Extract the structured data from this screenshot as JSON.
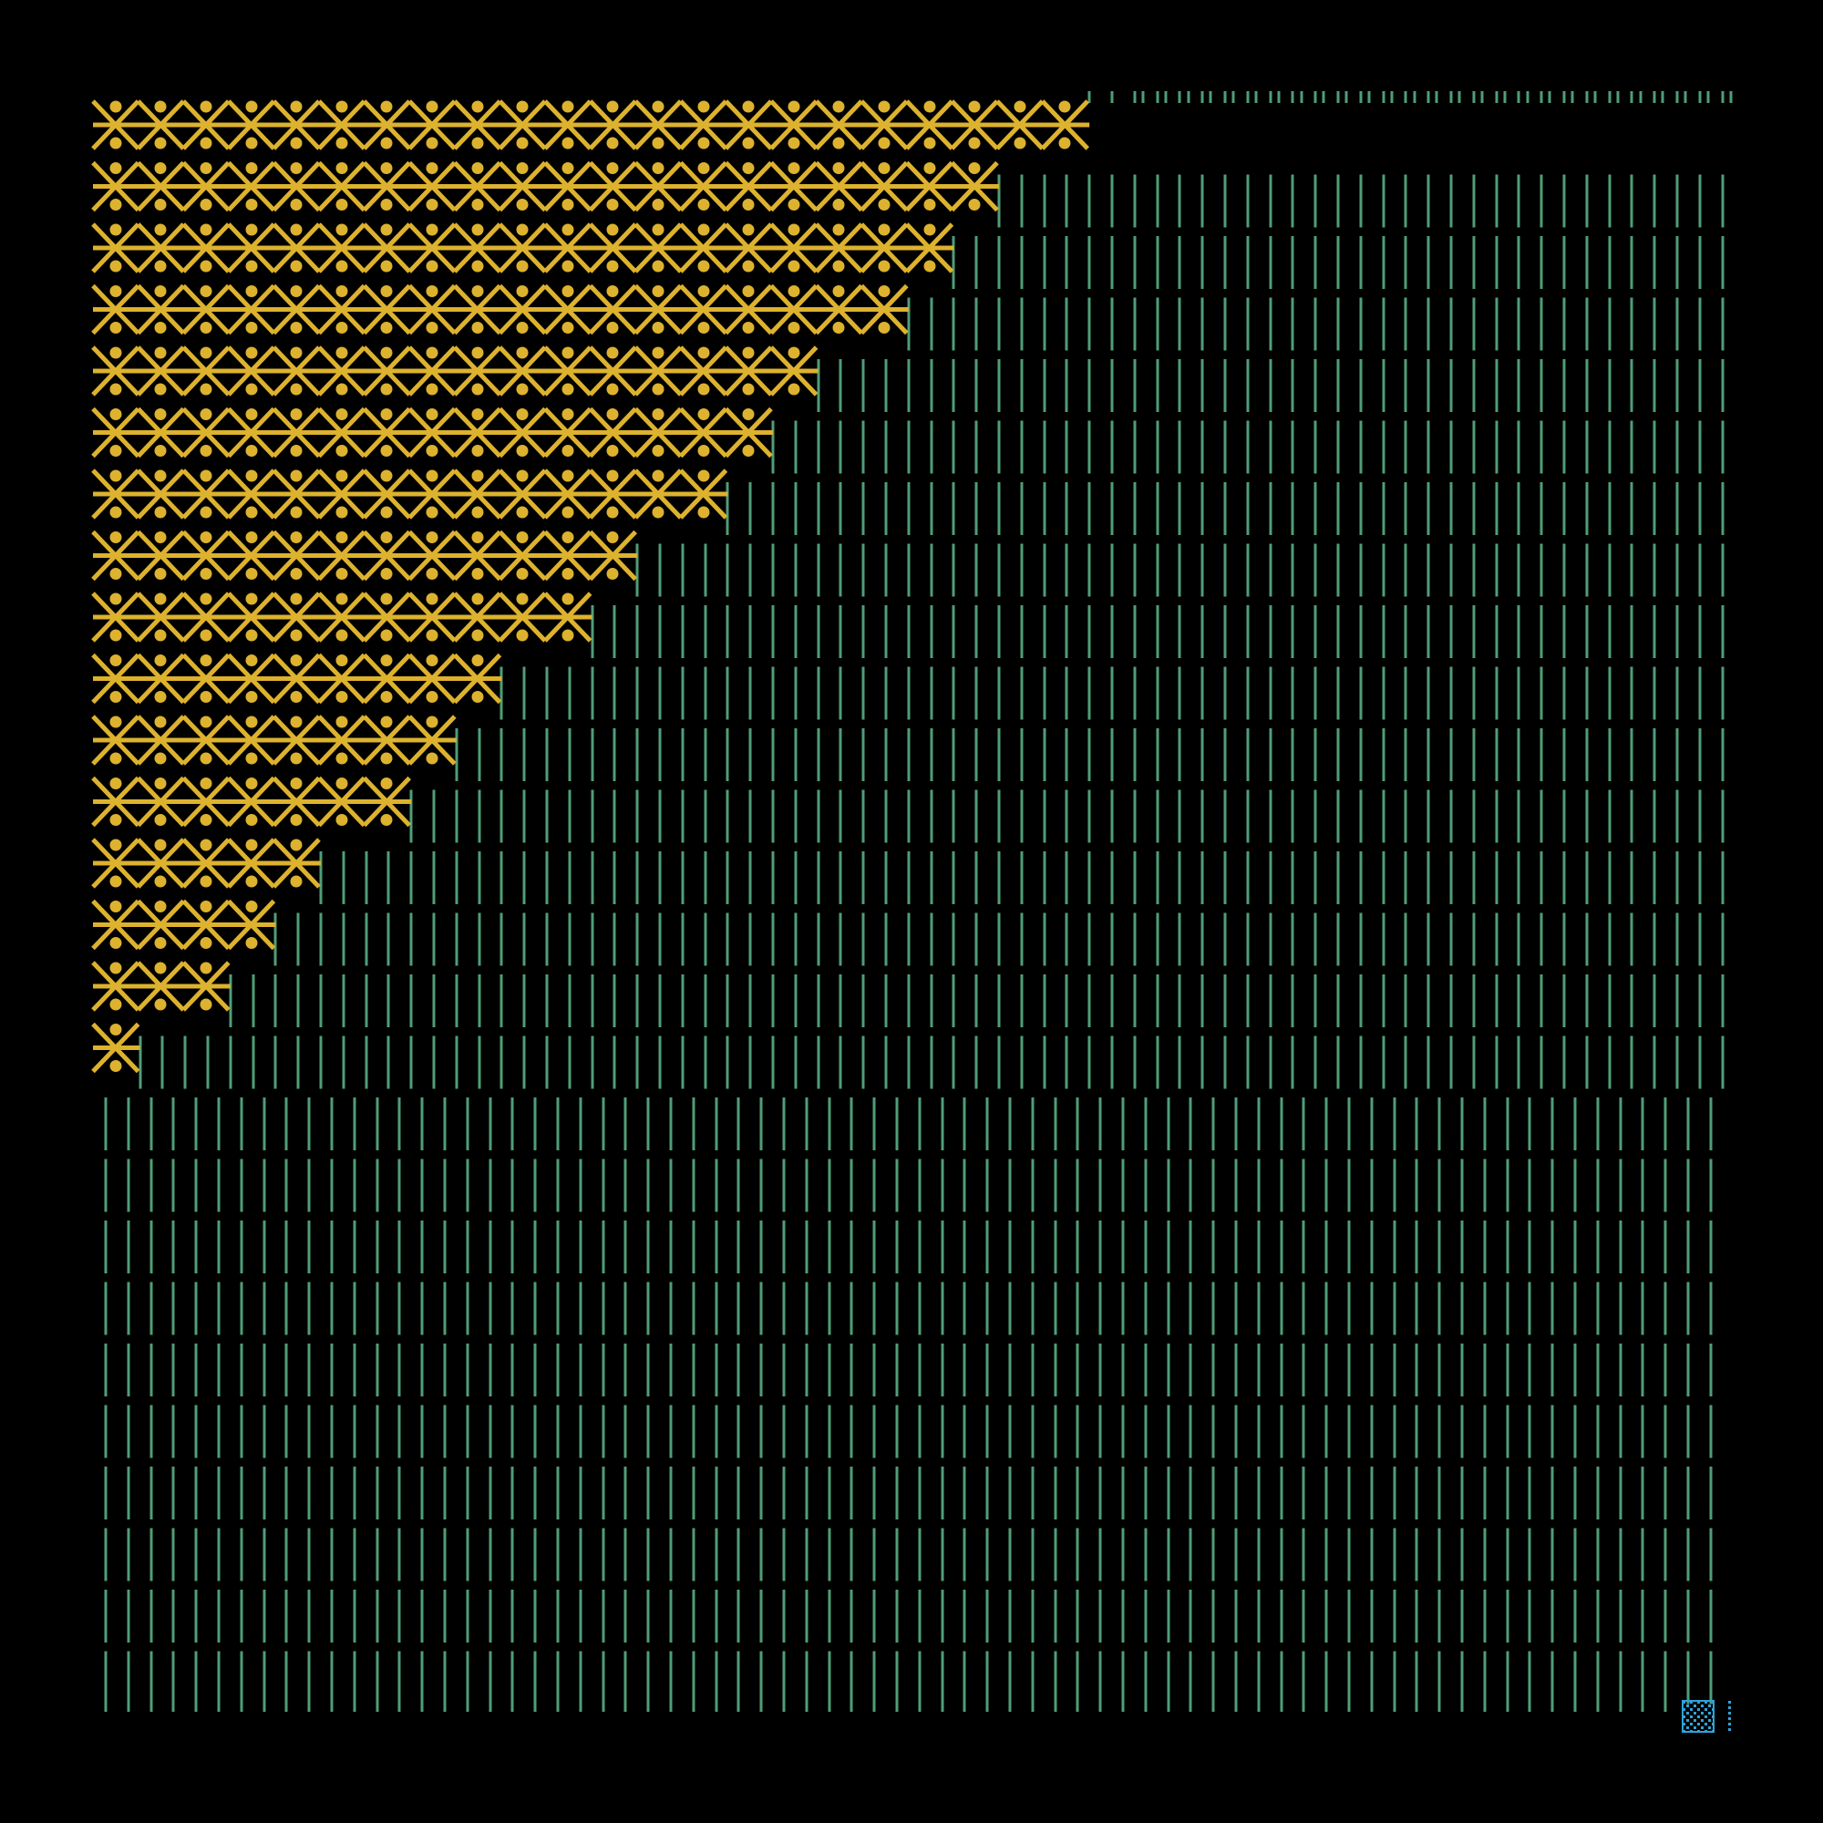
{
  "artwork": {
    "background_color": "#000000",
    "glyph_colors": {
      "crossed_motif": "#DDB22E",
      "vertical_strokes": "#4F9E78",
      "corner_block": "#2FA3D8"
    },
    "grid": {
      "columns": 36,
      "rows": 27
    },
    "crossed_motif_counts_per_row": [
      22,
      20,
      19,
      18,
      16,
      15,
      14,
      12,
      11,
      9,
      8,
      7,
      5,
      4,
      3,
      1
    ],
    "icons": {
      "crossed_motif": "x-with-dots-motif",
      "vertical_strokes": "double-vertical-line-motif",
      "corner_block": "dotted-square-block"
    }
  }
}
